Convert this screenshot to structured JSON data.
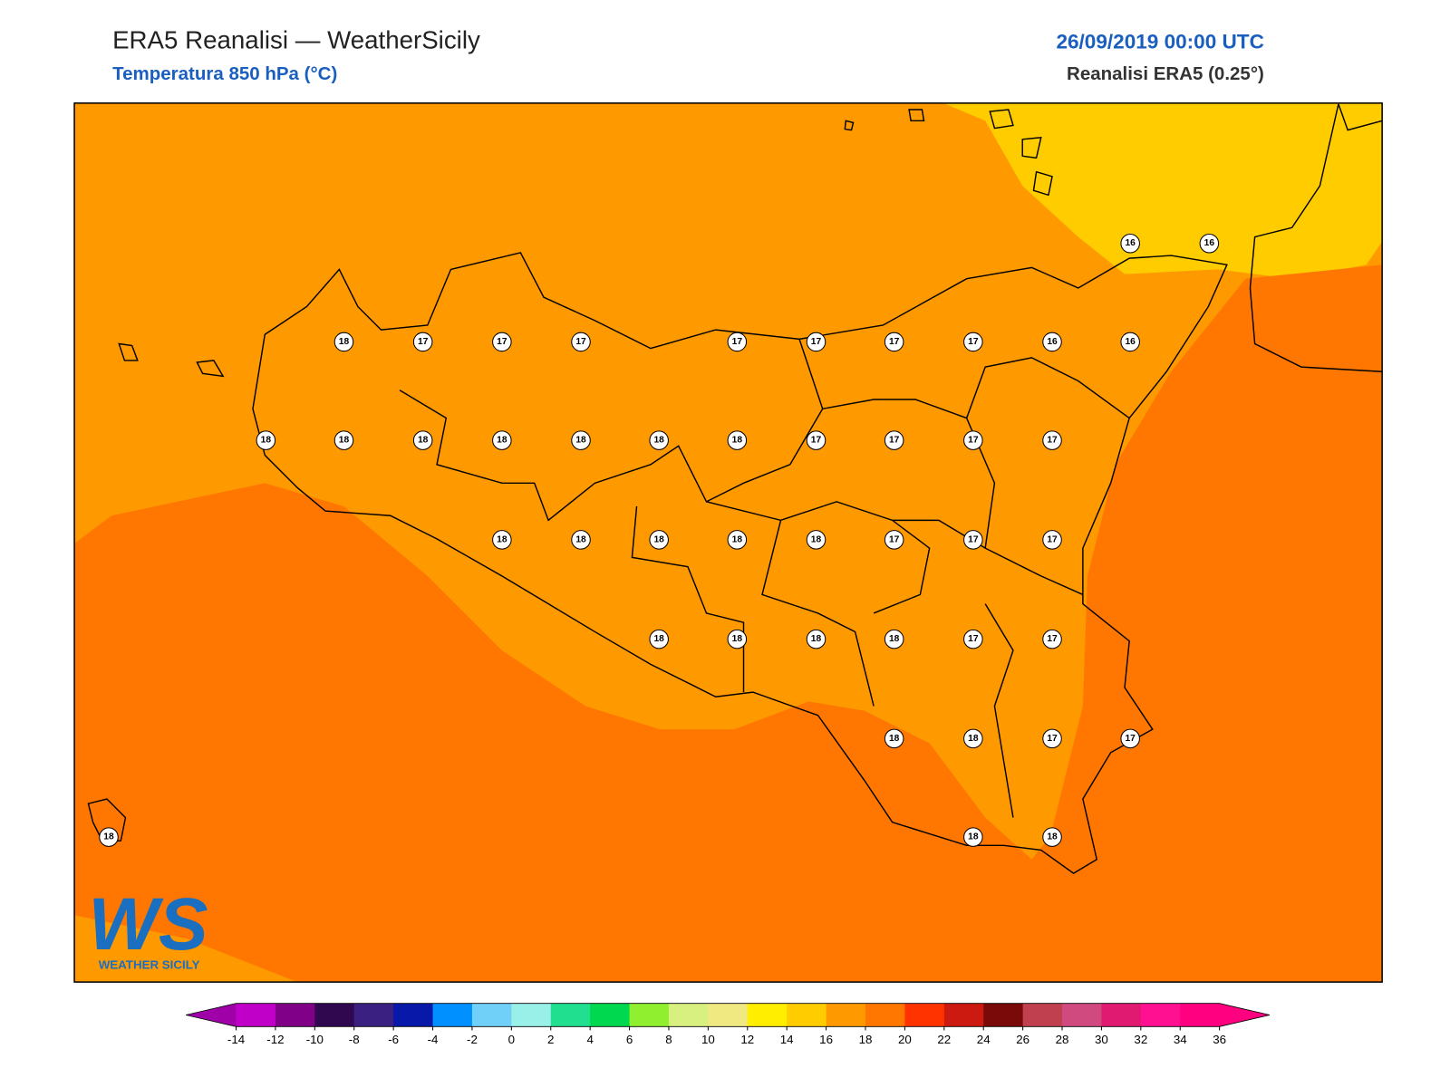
{
  "header": {
    "title": "ERA5 Reanalisi — WeatherSicily",
    "subtitle": "Temperatura 850 hPa (°C)",
    "date": "26/09/2019 00:00 UTC",
    "source": "Reanalisi ERA5 (0.25°)"
  },
  "map": {
    "point_labels": [
      16,
      16,
      18,
      17,
      17,
      17,
      17,
      17,
      17,
      17,
      16,
      16,
      18,
      18,
      18,
      18,
      18,
      18,
      18,
      17,
      17,
      17,
      17,
      18,
      18,
      18,
      18,
      18,
      17,
      17,
      17,
      18,
      18,
      18,
      18,
      17,
      17,
      18,
      18,
      17,
      17,
      18,
      18,
      18
    ]
  },
  "logo": {
    "text": "WS",
    "subtext": "WEATHER SICILY"
  },
  "colorbar": {
    "ticks": [
      -14,
      -12,
      -10,
      -8,
      -6,
      -4,
      -2,
      0,
      2,
      4,
      6,
      8,
      10,
      12,
      14,
      16,
      18,
      20,
      22,
      24,
      26,
      28,
      30,
      32,
      34,
      36
    ],
    "under_color": "#a000a8",
    "over_color": "#ff0080",
    "colors": [
      "#c000c8",
      "#800088",
      "#300850",
      "#3a2080",
      "#0818a8",
      "#0090ff",
      "#70d0f8",
      "#98f0e8",
      "#20e090",
      "#00d850",
      "#90f030",
      "#d8f080",
      "#f0e880",
      "#ffee00",
      "#ffcc00",
      "#ff9900",
      "#ff7700",
      "#ff3300",
      "#cc1a10",
      "#7a0a0a",
      "#c04050",
      "#d04a80",
      "#e01a70",
      "#ff1090",
      "#ff0080"
    ]
  }
}
